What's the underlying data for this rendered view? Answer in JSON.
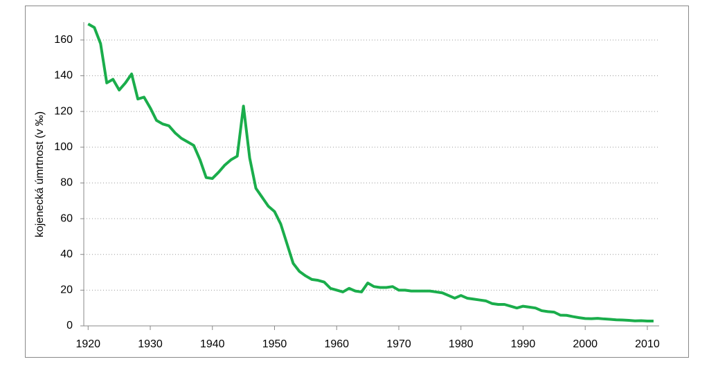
{
  "chart_data": {
    "type": "line",
    "y_label": "kojenecká úmrtnost (v ‰)",
    "color": "#1aad4b",
    "x": [
      1920,
      1921,
      1922,
      1923,
      1924,
      1925,
      1926,
      1927,
      1928,
      1929,
      1930,
      1931,
      1932,
      1933,
      1934,
      1935,
      1936,
      1937,
      1938,
      1939,
      1940,
      1941,
      1942,
      1943,
      1944,
      1945,
      1946,
      1947,
      1948,
      1949,
      1950,
      1951,
      1952,
      1953,
      1954,
      1955,
      1956,
      1957,
      1958,
      1959,
      1960,
      1961,
      1962,
      1963,
      1964,
      1965,
      1966,
      1967,
      1968,
      1969,
      1970,
      1971,
      1972,
      1973,
      1974,
      1975,
      1976,
      1977,
      1978,
      1979,
      1980,
      1981,
      1982,
      1983,
      1984,
      1985,
      1986,
      1987,
      1988,
      1989,
      1990,
      1991,
      1992,
      1993,
      1994,
      1995,
      1996,
      1997,
      1998,
      1999,
      2000,
      2001,
      2002,
      2003,
      2004,
      2005,
      2006,
      2007,
      2008,
      2009,
      2010,
      2011
    ],
    "values": [
      169,
      167,
      158,
      136,
      138,
      132,
      136,
      141,
      127,
      128,
      122,
      115,
      113,
      112,
      108,
      105,
      103,
      101,
      93,
      83,
      82.5,
      86,
      90,
      93,
      95,
      123,
      94,
      77,
      72,
      67,
      64,
      57,
      46,
      35,
      30.5,
      28,
      26,
      25.5,
      24.5,
      21,
      20,
      19,
      21,
      19.5,
      19,
      24,
      22,
      21.5,
      21.5,
      22,
      20,
      20,
      19.5,
      19.5,
      19.5,
      19.5,
      19,
      18.5,
      17,
      15.5,
      17,
      15.5,
      15,
      14.5,
      14,
      12.5,
      12,
      12,
      11,
      10,
      11,
      10.5,
      10,
      8.5,
      8,
      7.7,
      6,
      5.9,
      5.2,
      4.6,
      4.1,
      4,
      4.2,
      3.9,
      3.7,
      3.4,
      3.3,
      3.1,
      2.8,
      2.9,
      2.7,
      2.7
    ],
    "xlim": [
      1919.3,
      2011.9
    ],
    "xticks": [
      1920,
      1930,
      1940,
      1950,
      1960,
      1970,
      1980,
      1990,
      2000,
      2010
    ],
    "ylim": [
      0,
      170
    ],
    "yticks": [
      0,
      20,
      40,
      60,
      80,
      100,
      120,
      140,
      160
    ],
    "grid": true
  }
}
